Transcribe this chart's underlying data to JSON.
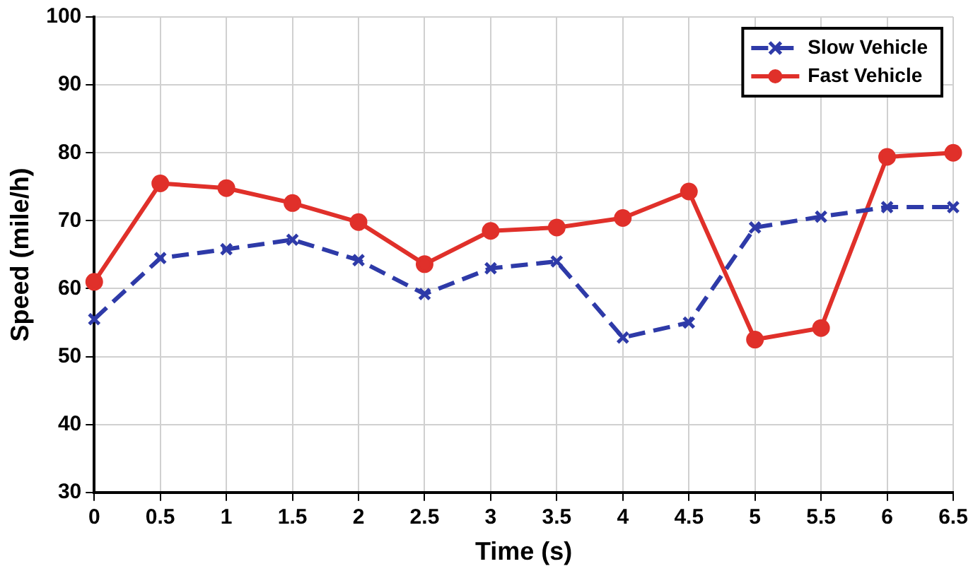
{
  "chart_data": {
    "type": "line",
    "xlabel": "Time (s)",
    "ylabel": "Speed (mile/h)",
    "x": [
      0,
      0.5,
      1,
      1.5,
      2,
      2.5,
      3,
      3.5,
      4,
      4.5,
      5,
      5.5,
      6,
      6.5
    ],
    "series": [
      {
        "name": "Slow Vehicle",
        "color": "#2e3aa8",
        "marker": "cross",
        "line_style": "dashed",
        "values": [
          55.5,
          64.5,
          65.8,
          67.2,
          64.2,
          59.2,
          63,
          64,
          52.8,
          55,
          69,
          70.6,
          72,
          72
        ]
      },
      {
        "name": "Fast Vehicle",
        "color": "#e0302a",
        "marker": "circle",
        "line_style": "solid",
        "values": [
          61,
          75.5,
          74.8,
          72.6,
          69.8,
          63.6,
          68.5,
          69,
          70.4,
          74.3,
          52.5,
          54.2,
          79.4,
          80
        ]
      }
    ],
    "xlim": [
      0,
      6.5
    ],
    "xticks": [
      0,
      0.5,
      1,
      1.5,
      2,
      2.5,
      3,
      3.5,
      4,
      4.5,
      5,
      5.5,
      6,
      6.5
    ],
    "ylim": [
      30,
      100
    ],
    "yticks": [
      30,
      40,
      50,
      60,
      70,
      80,
      90,
      100
    ],
    "grid": true,
    "legend": "top right"
  }
}
